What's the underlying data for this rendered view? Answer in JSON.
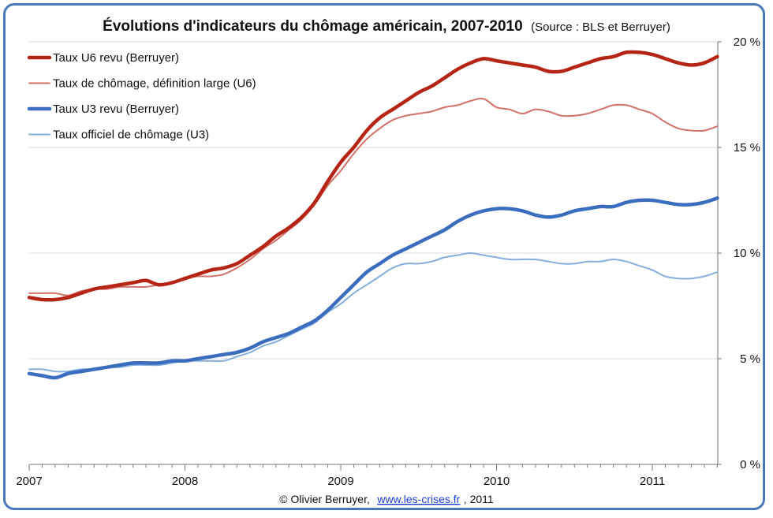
{
  "chart_data": {
    "type": "line",
    "title": "Évolutions d'indicateurs du chômage américain, 2007-2010",
    "subtitle": "(Source : BLS et Berruyer)",
    "xlabel": "",
    "ylabel": "",
    "x_ticks": [
      "2007",
      "2008",
      "2009",
      "2010",
      "2011"
    ],
    "y_ticks": [
      "0 %",
      "5 %",
      "10 %",
      "15 %",
      "20 %"
    ],
    "xlim": [
      2007.0,
      2011.42
    ],
    "ylim": [
      0,
      20
    ],
    "grid": "horizontal",
    "legend_position": "top-left",
    "x": [
      2007.0,
      2007.083,
      2007.167,
      2007.25,
      2007.333,
      2007.417,
      2007.5,
      2007.583,
      2007.667,
      2007.75,
      2007.833,
      2007.917,
      2008.0,
      2008.083,
      2008.167,
      2008.25,
      2008.333,
      2008.417,
      2008.5,
      2008.583,
      2008.667,
      2008.75,
      2008.833,
      2008.917,
      2009.0,
      2009.083,
      2009.167,
      2009.25,
      2009.333,
      2009.417,
      2009.5,
      2009.583,
      2009.667,
      2009.75,
      2009.833,
      2009.917,
      2010.0,
      2010.083,
      2010.167,
      2010.25,
      2010.333,
      2010.417,
      2010.5,
      2010.583,
      2010.667,
      2010.75,
      2010.833,
      2010.917,
      2011.0,
      2011.083,
      2011.167,
      2011.25,
      2011.333,
      2011.417
    ],
    "series": [
      {
        "name": "Taux U6 revu (Berruyer)",
        "color": "#b52414",
        "width": 4.5,
        "values": [
          7.9,
          7.8,
          7.8,
          7.9,
          8.1,
          8.3,
          8.4,
          8.5,
          8.6,
          8.7,
          8.5,
          8.6,
          8.8,
          9.0,
          9.2,
          9.3,
          9.5,
          9.9,
          10.3,
          10.8,
          11.2,
          11.7,
          12.4,
          13.4,
          14.3,
          15.0,
          15.8,
          16.4,
          16.8,
          17.2,
          17.6,
          17.9,
          18.3,
          18.7,
          19.0,
          19.2,
          19.1,
          19.0,
          18.9,
          18.8,
          18.6,
          18.6,
          18.8,
          19.0,
          19.2,
          19.3,
          19.5,
          19.5,
          19.4,
          19.2,
          19.0,
          18.9,
          19.0,
          19.3
        ]
      },
      {
        "name": "Taux de chômage, définition large (U6)",
        "color": "#d2706a",
        "width": 2,
        "values": [
          8.1,
          8.1,
          8.1,
          8.0,
          8.2,
          8.3,
          8.3,
          8.4,
          8.4,
          8.4,
          8.5,
          8.6,
          8.8,
          8.9,
          8.9,
          9.0,
          9.3,
          9.7,
          10.2,
          10.6,
          11.1,
          11.6,
          12.3,
          13.2,
          13.9,
          14.7,
          15.4,
          15.9,
          16.3,
          16.5,
          16.6,
          16.7,
          16.9,
          17.0,
          17.2,
          17.3,
          16.9,
          16.8,
          16.6,
          16.8,
          16.7,
          16.5,
          16.5,
          16.6,
          16.8,
          17.0,
          17.0,
          16.8,
          16.6,
          16.2,
          15.9,
          15.8,
          15.8,
          16.0
        ]
      },
      {
        "name": "Taux U3 revu (Berruyer)",
        "color": "#3b6dbf",
        "width": 4.5,
        "values": [
          4.3,
          4.2,
          4.1,
          4.3,
          4.4,
          4.5,
          4.6,
          4.7,
          4.8,
          4.8,
          4.8,
          4.9,
          4.9,
          5.0,
          5.1,
          5.2,
          5.3,
          5.5,
          5.8,
          6.0,
          6.2,
          6.5,
          6.8,
          7.3,
          7.9,
          8.5,
          9.1,
          9.5,
          9.9,
          10.2,
          10.5,
          10.8,
          11.1,
          11.5,
          11.8,
          12.0,
          12.1,
          12.1,
          12.0,
          11.8,
          11.7,
          11.8,
          12.0,
          12.1,
          12.2,
          12.2,
          12.4,
          12.5,
          12.5,
          12.4,
          12.3,
          12.3,
          12.4,
          12.6
        ]
      },
      {
        "name": "Taux officiel de chômage (U3)",
        "color": "#84aede",
        "width": 2,
        "values": [
          4.5,
          4.5,
          4.4,
          4.4,
          4.5,
          4.5,
          4.6,
          4.6,
          4.7,
          4.7,
          4.7,
          4.8,
          4.9,
          4.9,
          4.9,
          4.9,
          5.1,
          5.3,
          5.6,
          5.8,
          6.1,
          6.4,
          6.7,
          7.2,
          7.6,
          8.1,
          8.5,
          8.9,
          9.3,
          9.5,
          9.5,
          9.6,
          9.8,
          9.9,
          10.0,
          9.9,
          9.8,
          9.7,
          9.7,
          9.7,
          9.6,
          9.5,
          9.5,
          9.6,
          9.6,
          9.7,
          9.6,
          9.4,
          9.2,
          8.9,
          8.8,
          8.8,
          8.9,
          9.1
        ]
      }
    ]
  },
  "credit": {
    "prefix": "© Olivier Berruyer,",
    "link": "www.les-crises.fr",
    "suffix": ",  2011"
  }
}
